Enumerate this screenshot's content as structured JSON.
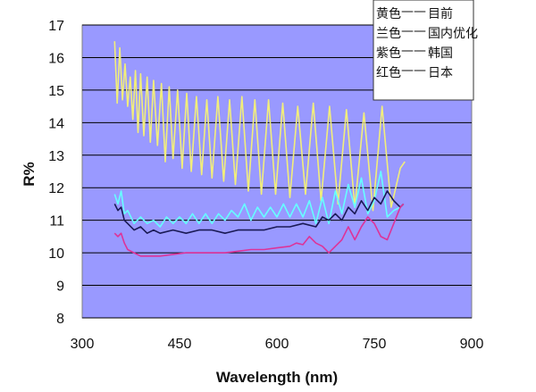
{
  "chart_data": {
    "type": "line",
    "title": "",
    "xlabel": "Wavelength (nm)",
    "ylabel": "R%",
    "xlim": [
      300,
      900
    ],
    "ylim": [
      8,
      17
    ],
    "xticks": [
      300,
      450,
      600,
      750,
      900
    ],
    "yticks": [
      8,
      9,
      10,
      11,
      12,
      13,
      14,
      15,
      16,
      17
    ],
    "grid": "horizontal",
    "plot_background": "#9999ff",
    "legend_position": "top-right",
    "legend": [
      {
        "color_name": "黄色",
        "dash": "——",
        "label": "目前"
      },
      {
        "color_name": "兰色",
        "dash": "——",
        "label": "国内优化"
      },
      {
        "color_name": "紫色",
        "dash": "——",
        "label": "韩国"
      },
      {
        "color_name": "红色",
        "dash": "——",
        "label": "日本"
      }
    ],
    "series": [
      {
        "name": "目前",
        "color": "#f2ee7a",
        "x": [
          350,
          354,
          358,
          362,
          366,
          370,
          374,
          378,
          382,
          386,
          390,
          395,
          400,
          405,
          410,
          416,
          422,
          428,
          434,
          440,
          447,
          454,
          461,
          468,
          476,
          484,
          492,
          500,
          509,
          518,
          527,
          536,
          546,
          556,
          566,
          576,
          587,
          598,
          609,
          620,
          632,
          644,
          656,
          668,
          681,
          694,
          707,
          720,
          734,
          748,
          762,
          776,
          790,
          797
        ],
        "y": [
          16.5,
          14.6,
          16.3,
          14.7,
          15.8,
          14.5,
          15.4,
          14.1,
          15.6,
          13.7,
          15.5,
          13.6,
          15.4,
          13.4,
          15.3,
          13.3,
          15.2,
          12.8,
          15.1,
          12.9,
          15.0,
          12.6,
          14.9,
          12.5,
          14.8,
          12.4,
          14.7,
          12.3,
          14.8,
          12.2,
          14.7,
          12.1,
          14.8,
          11.9,
          14.7,
          11.8,
          14.7,
          11.8,
          14.6,
          11.7,
          14.5,
          11.8,
          14.6,
          11.6,
          14.5,
          11.5,
          14.4,
          11.4,
          14.3,
          11.3,
          14.5,
          11.4,
          12.6,
          12.8
        ]
      },
      {
        "name": "国内优化",
        "color": "#66ffff",
        "x": [
          350,
          355,
          360,
          365,
          370,
          380,
          390,
          400,
          410,
          420,
          430,
          440,
          450,
          460,
          470,
          480,
          490,
          500,
          510,
          520,
          530,
          540,
          550,
          560,
          570,
          580,
          590,
          600,
          610,
          620,
          630,
          640,
          650,
          660,
          670,
          680,
          690,
          700,
          710,
          720,
          730,
          740,
          750,
          760,
          770,
          780,
          790,
          795
        ],
        "y": [
          11.8,
          11.5,
          11.9,
          11.2,
          11.3,
          10.9,
          11.1,
          10.9,
          11.0,
          10.8,
          11.1,
          10.9,
          11.1,
          10.9,
          11.2,
          10.9,
          11.2,
          10.9,
          11.2,
          11.0,
          11.3,
          11.1,
          11.5,
          11.0,
          11.4,
          11.1,
          11.4,
          11.1,
          11.5,
          11.1,
          11.5,
          11.1,
          11.6,
          10.9,
          11.7,
          10.9,
          11.9,
          11.2,
          12.1,
          11.4,
          12.3,
          11.2,
          11.6,
          12.5,
          11.1,
          11.3,
          11.4,
          11.5
        ]
      },
      {
        "name": "韩国",
        "color": "#1a1a55",
        "x": [
          350,
          355,
          360,
          365,
          370,
          380,
          390,
          400,
          410,
          420,
          440,
          460,
          480,
          500,
          520,
          540,
          560,
          580,
          600,
          620,
          640,
          660,
          670,
          680,
          690,
          700,
          710,
          720,
          730,
          740,
          750,
          760,
          770,
          780,
          790,
          795
        ],
        "y": [
          11.5,
          11.3,
          11.4,
          11.0,
          10.9,
          10.7,
          10.8,
          10.6,
          10.7,
          10.6,
          10.7,
          10.6,
          10.7,
          10.7,
          10.6,
          10.7,
          10.7,
          10.7,
          10.8,
          10.8,
          10.9,
          10.8,
          11.1,
          11.0,
          11.2,
          11.0,
          11.4,
          11.2,
          11.6,
          11.3,
          11.7,
          11.5,
          11.9,
          11.6,
          11.4,
          11.5
        ]
      },
      {
        "name": "日本",
        "color": "#dd3399",
        "x": [
          350,
          355,
          360,
          365,
          370,
          380,
          390,
          400,
          420,
          440,
          460,
          480,
          500,
          520,
          540,
          560,
          580,
          600,
          620,
          630,
          640,
          650,
          660,
          670,
          680,
          690,
          700,
          710,
          720,
          730,
          740,
          750,
          760,
          770,
          780,
          790,
          795
        ],
        "y": [
          10.6,
          10.5,
          10.6,
          10.3,
          10.1,
          10.0,
          9.9,
          9.9,
          9.9,
          9.95,
          10.0,
          10.0,
          10.0,
          10.0,
          10.05,
          10.1,
          10.1,
          10.15,
          10.2,
          10.3,
          10.25,
          10.5,
          10.3,
          10.2,
          10.0,
          10.2,
          10.4,
          10.8,
          10.4,
          10.8,
          11.1,
          10.9,
          10.5,
          10.4,
          10.9,
          11.4,
          11.5
        ]
      }
    ]
  }
}
